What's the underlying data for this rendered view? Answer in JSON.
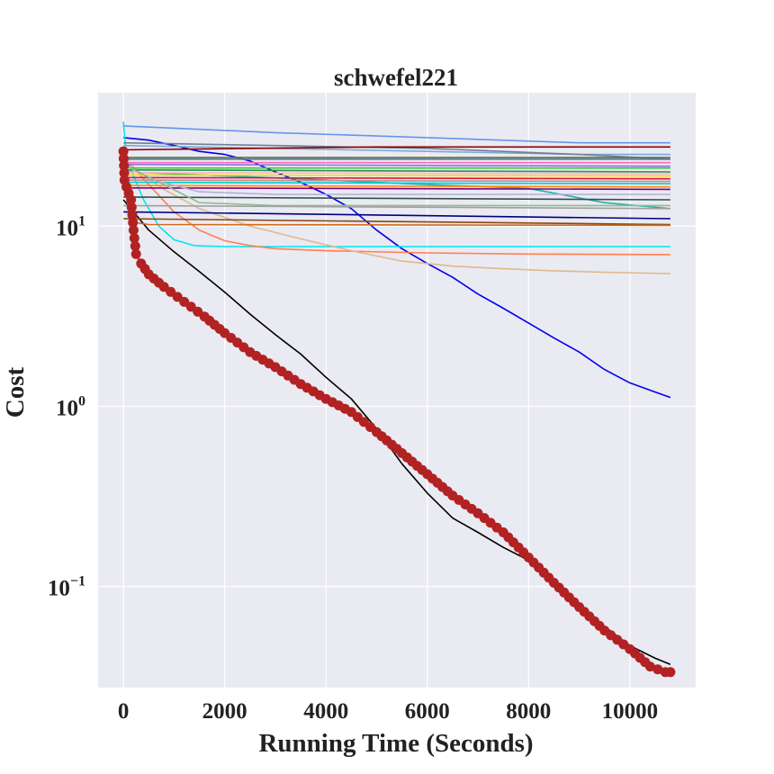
{
  "chart_data": {
    "type": "line",
    "title": "schwefel221",
    "xlabel": "Running Time (Seconds)",
    "ylabel": "Cost",
    "xlim": [
      -500,
      11300
    ],
    "ylim": [
      0.0275,
      55
    ],
    "yscale": "log",
    "grid": true,
    "x_ticks": [
      "0",
      "2000",
      "4000",
      "6000",
      "8000",
      "10000"
    ],
    "x_tick_values": [
      0,
      2000,
      4000,
      6000,
      8000,
      10000
    ],
    "y_ticks": [
      {
        "base": "10",
        "exp": "1",
        "value": 10
      },
      {
        "base": "10",
        "exp": "0",
        "value": 1
      },
      {
        "base": "10",
        "exp": "−1",
        "value": 0.1
      }
    ],
    "colors": {
      "background": "#eaeaf2",
      "grid": "#ffffff",
      "highlight": "#b22222"
    },
    "series": [
      {
        "color": "#b22222",
        "markers": true,
        "points": [
          [
            0,
            26
          ],
          [
            20,
            18
          ],
          [
            60,
            16.5
          ],
          [
            150,
            14
          ],
          [
            200,
            9.5
          ],
          [
            250,
            7
          ],
          [
            350,
            6.2
          ],
          [
            500,
            5.4
          ],
          [
            800,
            4.6
          ],
          [
            1200,
            3.8
          ],
          [
            1600,
            3.15
          ],
          [
            2000,
            2.55
          ],
          [
            2500,
            2.0
          ],
          [
            3000,
            1.65
          ],
          [
            3500,
            1.33
          ],
          [
            4000,
            1.1
          ],
          [
            4500,
            0.93
          ],
          [
            5000,
            0.72
          ],
          [
            5500,
            0.55
          ],
          [
            6000,
            0.42
          ],
          [
            6500,
            0.32
          ],
          [
            7000,
            0.255
          ],
          [
            7500,
            0.2
          ],
          [
            8000,
            0.145
          ],
          [
            8500,
            0.105
          ],
          [
            9000,
            0.077
          ],
          [
            9500,
            0.057
          ],
          [
            10000,
            0.045
          ],
          [
            10400,
            0.036
          ],
          [
            10700,
            0.0335
          ],
          [
            10800,
            0.0335
          ]
        ]
      },
      {
        "color": "#000000",
        "markers": false,
        "points": [
          [
            0,
            14
          ],
          [
            200,
            12
          ],
          [
            500,
            9.5
          ],
          [
            1000,
            7.2
          ],
          [
            1500,
            5.6
          ],
          [
            2000,
            4.3
          ],
          [
            2500,
            3.25
          ],
          [
            3000,
            2.5
          ],
          [
            3500,
            1.95
          ],
          [
            4000,
            1.45
          ],
          [
            4500,
            1.1
          ],
          [
            5000,
            0.75
          ],
          [
            5500,
            0.48
          ],
          [
            6000,
            0.33
          ],
          [
            6500,
            0.24
          ],
          [
            7000,
            0.2
          ],
          [
            7500,
            0.165
          ],
          [
            8000,
            0.14
          ],
          [
            8500,
            0.11
          ],
          [
            9000,
            0.08
          ],
          [
            9500,
            0.06
          ],
          [
            10000,
            0.047
          ],
          [
            10500,
            0.04
          ],
          [
            10800,
            0.037
          ]
        ]
      },
      {
        "color": "#0000ee",
        "markers": false,
        "points": [
          [
            0,
            31
          ],
          [
            500,
            30
          ],
          [
            1000,
            28
          ],
          [
            1500,
            26
          ],
          [
            2000,
            25
          ],
          [
            2500,
            23
          ],
          [
            3000,
            20
          ],
          [
            3500,
            17.5
          ],
          [
            4000,
            15
          ],
          [
            4500,
            12.5
          ],
          [
            5000,
            9.5
          ],
          [
            5500,
            7.5
          ],
          [
            6000,
            6.2
          ],
          [
            6500,
            5.2
          ],
          [
            7000,
            4.2
          ],
          [
            7500,
            3.5
          ],
          [
            8000,
            2.9
          ],
          [
            8500,
            2.4
          ],
          [
            9000,
            2.0
          ],
          [
            9500,
            1.6
          ],
          [
            10000,
            1.35
          ],
          [
            10500,
            1.2
          ],
          [
            10800,
            1.12
          ]
        ]
      },
      {
        "color": "#00e5ee",
        "markers": false,
        "points": [
          [
            0,
            38
          ],
          [
            60,
            24
          ],
          [
            200,
            19
          ],
          [
            400,
            14
          ],
          [
            700,
            10
          ],
          [
            1000,
            8.4
          ],
          [
            1400,
            7.8
          ],
          [
            2000,
            7.7
          ],
          [
            4000,
            7.7
          ],
          [
            8000,
            7.7
          ],
          [
            10800,
            7.7
          ]
        ]
      },
      {
        "color": "#ff7f50",
        "markers": false,
        "points": [
          [
            0,
            24
          ],
          [
            200,
            21
          ],
          [
            500,
            17
          ],
          [
            1000,
            12
          ],
          [
            1500,
            9.5
          ],
          [
            2000,
            8.3
          ],
          [
            2500,
            7.8
          ],
          [
            3000,
            7.5
          ],
          [
            4000,
            7.3
          ],
          [
            6000,
            7.1
          ],
          [
            8000,
            7.0
          ],
          [
            10800,
            6.95
          ]
        ]
      },
      {
        "color": "#e0b889",
        "markers": false,
        "points": [
          [
            0,
            24
          ],
          [
            300,
            20
          ],
          [
            800,
            16
          ],
          [
            1500,
            12.5
          ],
          [
            2500,
            10
          ],
          [
            3500,
            8.5
          ],
          [
            4500,
            7.3
          ],
          [
            5500,
            6.4
          ],
          [
            6500,
            6.0
          ],
          [
            7500,
            5.8
          ],
          [
            8500,
            5.65
          ],
          [
            9500,
            5.55
          ],
          [
            10800,
            5.45
          ]
        ]
      },
      {
        "color": "#7da7d9",
        "markers": false,
        "points": [
          [
            0,
            28
          ],
          [
            3000,
            27
          ],
          [
            6000,
            26
          ],
          [
            9000,
            25
          ],
          [
            10800,
            25
          ]
        ]
      },
      {
        "color": "#20b2aa",
        "markers": false,
        "points": [
          [
            0,
            20
          ],
          [
            2000,
            19
          ],
          [
            4000,
            18
          ],
          [
            6000,
            17
          ],
          [
            8000,
            16.2
          ],
          [
            9500,
            13.5
          ],
          [
            10800,
            12.5
          ]
        ]
      },
      {
        "color": "#6495ed",
        "markers": false,
        "points": [
          [
            0,
            36
          ],
          [
            3000,
            33
          ],
          [
            6000,
            31
          ],
          [
            9000,
            29
          ],
          [
            10800,
            29
          ]
        ]
      },
      {
        "color": "#708090",
        "markers": false,
        "points": [
          [
            0,
            29
          ],
          [
            3000,
            28
          ],
          [
            6000,
            27
          ],
          [
            9000,
            25
          ],
          [
            10800,
            23.5
          ]
        ]
      },
      {
        "color": "#8b0000",
        "markers": false,
        "points": [
          [
            0,
            26.5
          ],
          [
            5000,
            27.5
          ],
          [
            10800,
            27.5
          ]
        ]
      },
      {
        "color": "#6b6b2e",
        "markers": false,
        "points": [
          [
            0,
            24
          ],
          [
            10800,
            24
          ]
        ]
      },
      {
        "color": "#4682b4",
        "markers": false,
        "points": [
          [
            0,
            23.5
          ],
          [
            10800,
            23.5
          ]
        ]
      },
      {
        "color": "#ff69b4",
        "markers": false,
        "points": [
          [
            0,
            22.5
          ],
          [
            10800,
            22.5
          ]
        ]
      },
      {
        "color": "#9370db",
        "markers": false,
        "points": [
          [
            0,
            22
          ],
          [
            10800,
            21.5
          ]
        ]
      },
      {
        "color": "#32cd32",
        "markers": false,
        "points": [
          [
            0,
            21
          ],
          [
            10800,
            21
          ]
        ]
      },
      {
        "color": "#2e8b57",
        "markers": false,
        "points": [
          [
            0,
            20.5
          ],
          [
            10800,
            20
          ]
        ]
      },
      {
        "color": "#ffb6c1",
        "markers": false,
        "points": [
          [
            0,
            19.8
          ],
          [
            10800,
            19.5
          ]
        ]
      },
      {
        "color": "#ffd700",
        "markers": false,
        "points": [
          [
            0,
            19.2
          ],
          [
            10800,
            19
          ]
        ]
      },
      {
        "color": "#dc143c",
        "markers": false,
        "points": [
          [
            0,
            18.6
          ],
          [
            10800,
            18.3
          ]
        ]
      },
      {
        "color": "#bc8f8f",
        "markers": false,
        "points": [
          [
            0,
            18
          ],
          [
            10800,
            17.7
          ]
        ]
      },
      {
        "color": "#00ced1",
        "markers": false,
        "points": [
          [
            0,
            17.5
          ],
          [
            10800,
            17.2
          ]
        ]
      },
      {
        "color": "#ff8c00",
        "markers": false,
        "points": [
          [
            0,
            16.8
          ],
          [
            10800,
            16.5
          ]
        ]
      },
      {
        "color": "#800080",
        "markers": false,
        "points": [
          [
            0,
            16.3
          ],
          [
            10800,
            16
          ]
        ]
      },
      {
        "color": "#b0b0d8",
        "markers": false,
        "points": [
          [
            0,
            22
          ],
          [
            600,
            18
          ],
          [
            1500,
            15.5
          ],
          [
            3000,
            15
          ],
          [
            10800,
            15
          ]
        ]
      },
      {
        "color": "#2f4f4f",
        "markers": false,
        "points": [
          [
            0,
            14.5
          ],
          [
            10800,
            14
          ]
        ]
      },
      {
        "color": "#8fbc8f",
        "markers": false,
        "points": [
          [
            0,
            22
          ],
          [
            800,
            17
          ],
          [
            1500,
            13.5
          ],
          [
            3000,
            13
          ],
          [
            10800,
            13
          ]
        ]
      },
      {
        "color": "#a0a0a0",
        "markers": false,
        "points": [
          [
            0,
            13
          ],
          [
            10800,
            12.5
          ]
        ]
      },
      {
        "color": "#000080",
        "markers": false,
        "points": [
          [
            0,
            12
          ],
          [
            10800,
            11
          ]
        ]
      },
      {
        "color": "#8b4513",
        "markers": false,
        "points": [
          [
            0,
            11
          ],
          [
            10800,
            10.2
          ]
        ]
      },
      {
        "color": "#d2691e",
        "markers": false,
        "points": [
          [
            0,
            20
          ],
          [
            100,
            12.5
          ],
          [
            200,
            10.5
          ],
          [
            500,
            10.2
          ],
          [
            10800,
            10.1
          ]
        ]
      }
    ]
  }
}
